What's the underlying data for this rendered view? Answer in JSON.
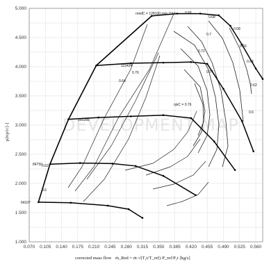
{
  "chart_data": {
    "type": "line",
    "title": "",
    "xlabel": "corrected mass flow",
    "xlabel_formula": "ṁ_Red = ṁ·√(T₁t/T_ref)·P_ref/P₁t [kg/s]",
    "ylabel": "p2t/p1t [-]",
    "watermark": "DEVELOPMENT MAP",
    "xlim": [
      0.07,
      0.575
    ],
    "ylim": [
      1.0,
      5.0
    ],
    "xticks": [
      "0.070",
      "0.105",
      "0.140",
      "0.175",
      "0.210",
      "0.245",
      "0.280",
      "0.315",
      "0.350",
      "0.385",
      "0.420",
      "0.455",
      "0.490",
      "0.525",
      "0.560"
    ],
    "yticks": [
      "1.000",
      "1.500",
      "2.000",
      "2.500",
      "3.000",
      "3.500",
      "4.000",
      "4.500",
      "5.000"
    ],
    "grid": true,
    "speed_lines": [
      {
        "label": "64107",
        "points": [
          [
            0.09,
            1.68
          ],
          [
            0.16,
            1.67
          ],
          [
            0.24,
            1.62
          ],
          [
            0.285,
            1.56
          ],
          [
            0.315,
            1.41
          ]
        ]
      },
      {
        "label": "84750",
        "points": [
          [
            0.115,
            2.33
          ],
          [
            0.18,
            2.35
          ],
          [
            0.25,
            2.34
          ],
          [
            0.3,
            2.3
          ],
          [
            0.36,
            2.13
          ],
          [
            0.43,
            1.8
          ]
        ]
      },
      {
        "label": "101285",
        "points": [
          [
            0.155,
            3.1
          ],
          [
            0.22,
            3.13
          ],
          [
            0.29,
            3.15
          ],
          [
            0.36,
            3.17
          ],
          [
            0.42,
            3.12
          ],
          [
            0.47,
            2.72
          ],
          [
            0.515,
            2.23
          ]
        ]
      },
      {
        "label": "115434",
        "points": [
          [
            0.215,
            4.02
          ],
          [
            0.29,
            4.06
          ],
          [
            0.36,
            4.07
          ],
          [
            0.42,
            4.08
          ],
          [
            0.455,
            4.05
          ],
          [
            0.49,
            3.62
          ],
          [
            0.53,
            3.07
          ],
          [
            0.555,
            2.55
          ]
        ]
      },
      {
        "label": "nredC = 128100 rpm",
        "points": [
          [
            0.335,
            4.87
          ],
          [
            0.39,
            4.91
          ],
          [
            0.44,
            4.91
          ],
          [
            0.48,
            4.88
          ],
          [
            0.505,
            4.7
          ],
          [
            0.53,
            4.38
          ],
          [
            0.56,
            3.97
          ],
          [
            0.575,
            3.79
          ]
        ]
      }
    ],
    "speed_line_prefix": "nredC = 128100 rpm",
    "surge_line": [
      [
        0.09,
        1.68
      ],
      [
        0.115,
        2.33
      ],
      [
        0.155,
        3.1
      ],
      [
        0.215,
        4.02
      ],
      [
        0.335,
        4.87
      ]
    ],
    "efficiency_labels": [
      "0.64",
      "0.66",
      "0.68",
      "0.68",
      "0.7",
      "0.72",
      "0.74",
      "0.76",
      "0.66",
      "0.64",
      "0.62",
      "0.6",
      "0.64",
      "0.62",
      "0.6"
    ],
    "efficiency_line_label": "ηisC = 0.76"
  }
}
